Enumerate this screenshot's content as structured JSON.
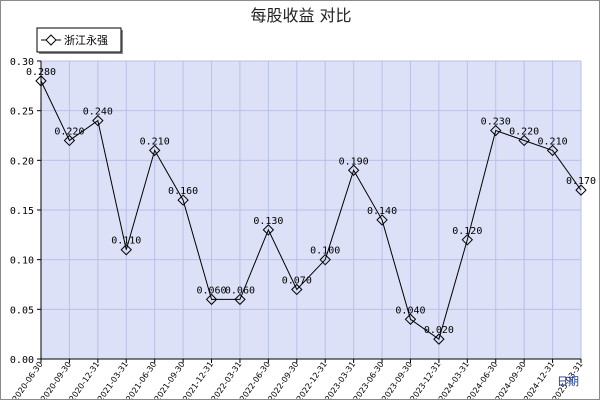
{
  "chart_data": {
    "type": "line",
    "title": "每股收益  对比",
    "ylim": [
      0,
      0.3
    ],
    "yticks": [
      "0.00",
      "0.05",
      "0.10",
      "0.15",
      "0.20",
      "0.25",
      "0.30"
    ],
    "grid": true,
    "legend_position": "top-left",
    "x_axis_note": "日期",
    "categories": [
      "2020-06-30",
      "2020-09-30",
      "2020-12-31",
      "2021-03-31",
      "2021-06-30",
      "2021-09-30",
      "2021-12-31",
      "2022-03-31",
      "2022-06-30",
      "2022-09-30",
      "2022-12-31",
      "2023-03-31",
      "2023-06-30",
      "2023-09-30",
      "2023-12-31",
      "2024-03-31",
      "2024-06-30",
      "2024-09-30",
      "2024-12-31",
      "2025-03-31"
    ],
    "series": [
      {
        "name": "浙江永强",
        "values": [
          0.28,
          0.22,
          0.24,
          0.11,
          0.21,
          0.16,
          0.06,
          0.06,
          0.13,
          0.07,
          0.1,
          0.19,
          0.14,
          0.04,
          0.02,
          0.12,
          0.23,
          0.22,
          0.21,
          0.17
        ],
        "labels": [
          "0.280",
          "0.220",
          "0.240",
          "0.110",
          "0.210",
          "0.160",
          "0.060",
          "0.060",
          "0.130",
          "0.070",
          "0.100",
          "0.190",
          "0.140",
          "0.040",
          "0.020",
          "0.120",
          "0.230",
          "0.220",
          "0.210",
          "0.170"
        ]
      }
    ],
    "colors": {
      "plot_bg": "#dde1f7",
      "grid": "#b9bfe8",
      "line": "#000000",
      "legend_bg": "#ffffff"
    }
  }
}
